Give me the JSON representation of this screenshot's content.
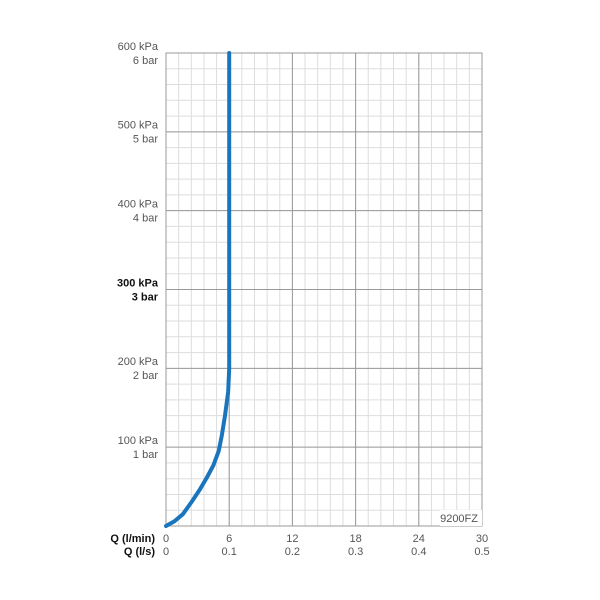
{
  "chart_data": {
    "type": "line",
    "x_label": "Q (l/min)",
    "x2_label": "Q (l/s)",
    "annotation": "9200FZ",
    "xlim": [
      0,
      30
    ],
    "xticks": [
      0,
      6,
      12,
      18,
      24,
      30
    ],
    "x2lim": [
      0,
      0.5
    ],
    "x2ticks": [
      0,
      0.1,
      0.2,
      0.3,
      0.4,
      0.5
    ],
    "ylim": [
      0,
      600
    ],
    "yticks": [
      {
        "value": 100,
        "label": "100 kPa"
      },
      {
        "value": 200,
        "label": "200 kPa"
      },
      {
        "value": 300,
        "label": "300 kPa"
      },
      {
        "value": 400,
        "label": "400 kPa"
      },
      {
        "value": 500,
        "label": "500 kPa"
      },
      {
        "value": 600,
        "label": "600 kPa"
      }
    ],
    "y2lim": [
      0,
      6
    ],
    "y2ticks": [
      {
        "value": 1,
        "label": "1 bar"
      },
      {
        "value": 2,
        "label": "2 bar"
      },
      {
        "value": 3,
        "label": "3 bar"
      },
      {
        "value": 4,
        "label": "4 bar"
      },
      {
        "value": 5,
        "label": "5 bar"
      },
      {
        "value": 6,
        "label": "6 bar"
      }
    ],
    "bold_ytick": 300,
    "grid": true,
    "minor_grid": true,
    "series": [
      {
        "color": "#1a75bc",
        "x": [
          0,
          0.8,
          1.6,
          2.4,
          3.2,
          3.9,
          4.5,
          5,
          5.3,
          5.6,
          5.9,
          6,
          6
        ],
        "values": [
          0,
          6,
          15,
          30,
          46,
          62,
          77,
          95,
          115,
          140,
          170,
          200,
          600
        ]
      }
    ]
  }
}
